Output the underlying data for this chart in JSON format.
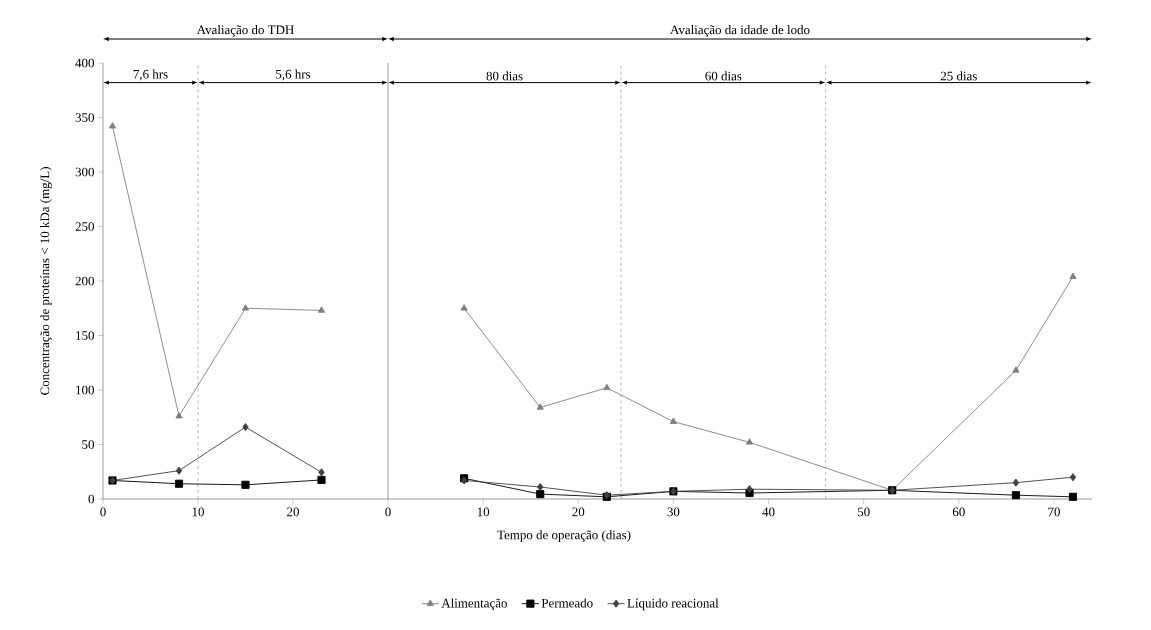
{
  "chart_data": [
    {
      "type": "line",
      "ylabel": "Concentração de proteínas < 10 kDa (mg/L)",
      "xlim": [
        0,
        30
      ],
      "xticks": [
        0,
        10,
        20
      ],
      "ylim": [
        0,
        400
      ],
      "yticks": [
        0,
        50,
        100,
        150,
        200,
        250,
        300,
        350,
        400
      ],
      "annotations": [
        "Avaliação do TDH",
        "7,6 hrs",
        "5,6 hrs"
      ],
      "ref_lines": [
        {
          "axis": "x",
          "value": 10,
          "color": "#a0a0a0",
          "line_style": "dashed"
        }
      ],
      "series": [
        {
          "color": "#808080",
          "marker": "triangle",
          "x": [
            1,
            8,
            15,
            23
          ],
          "values": [
            342,
            76,
            175,
            173
          ]
        },
        {
          "color": "#000000",
          "marker": "square",
          "x": [
            1,
            8,
            15,
            23
          ],
          "values": [
            17,
            14,
            13,
            17.5
          ]
        },
        {
          "color": "#404040",
          "marker": "diamond",
          "x": [
            1,
            8,
            15,
            23
          ],
          "values": [
            17,
            26,
            66,
            24.5
          ]
        }
      ]
    },
    {
      "type": "line",
      "xlabel": "Tempo de operação (dias)",
      "xlim": [
        0,
        74
      ],
      "xticks": [
        0,
        10,
        20,
        30,
        40,
        50,
        60,
        70
      ],
      "ylim": [
        0,
        400
      ],
      "tick_labels": "x",
      "legend": "bottom",
      "annotations": [
        "Avaliação da idade de lodo",
        "80 dias",
        "60 dias",
        "25 dias"
      ],
      "ref_lines": [
        {
          "axis": "x",
          "value": 24.5,
          "color": "#a0a0a0",
          "line_style": "dashed"
        },
        {
          "axis": "x",
          "value": 46,
          "color": "#a0a0a0",
          "line_style": "dashed"
        }
      ],
      "series": [
        {
          "name": "Alimentação",
          "color": "#808080",
          "marker": "triangle",
          "x": [
            8,
            16,
            23,
            30,
            38,
            53,
            66,
            72
          ],
          "values": [
            175,
            84,
            102,
            71,
            52,
            8,
            118,
            204
          ]
        },
        {
          "name": "Permeado",
          "color": "#000000",
          "marker": "square",
          "x": [
            8,
            16,
            23,
            30,
            38,
            53,
            66,
            72
          ],
          "values": [
            19,
            4.5,
            2,
            7,
            5.5,
            8,
            3.5,
            2
          ]
        },
        {
          "name": "Líquido reacional",
          "color": "#404040",
          "marker": "diamond",
          "x": [
            8,
            16,
            23,
            30,
            38,
            53,
            66,
            72
          ],
          "values": [
            17,
            11,
            3.5,
            7,
            9,
            8,
            15,
            20
          ]
        }
      ]
    }
  ]
}
